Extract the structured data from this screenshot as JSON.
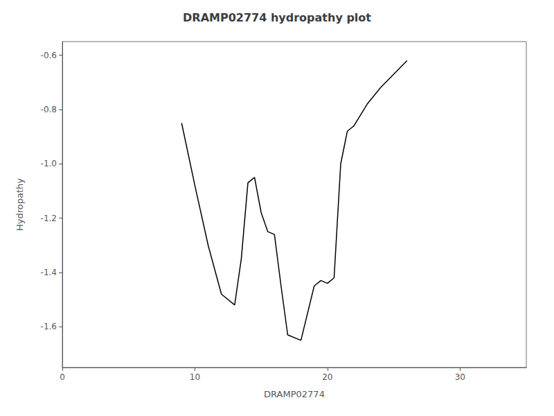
{
  "chart_data": {
    "type": "line",
    "title": "DRAMP02774 hydropathy plot",
    "xlabel": "DRAMP02774",
    "ylabel": "Hydropathy",
    "x": [
      9,
      10,
      11,
      12,
      13,
      13.5,
      14,
      14.5,
      15,
      15.5,
      16,
      16.5,
      17,
      18,
      19,
      19.5,
      20,
      20.5,
      21,
      21.5,
      22,
      23,
      24,
      25,
      26
    ],
    "values": [
      -0.85,
      -1.08,
      -1.3,
      -1.48,
      -1.52,
      -1.35,
      -1.07,
      -1.05,
      -1.18,
      -1.25,
      -1.26,
      -1.45,
      -1.63,
      -1.65,
      -1.45,
      -1.43,
      -1.44,
      -1.42,
      -1.0,
      -0.88,
      -0.86,
      -0.78,
      -0.72,
      -0.67,
      -0.62
    ],
    "color": "black",
    "xlim": [
      0,
      35
    ],
    "xticks": [
      0,
      10,
      20,
      30
    ],
    "ylim": [
      -1.75,
      -0.55
    ],
    "yticks": [
      -1.6,
      -1.4,
      -1.2,
      {
        "value": -1.0,
        "label": "-1.0"
      },
      -0.8,
      -0.6
    ],
    "grid": false
  }
}
